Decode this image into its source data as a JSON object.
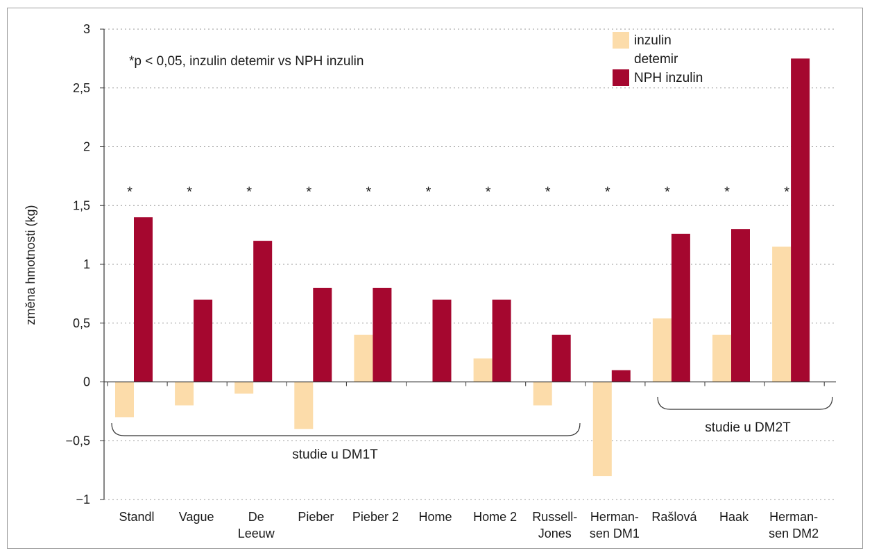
{
  "chart_data": {
    "type": "bar",
    "ylabel": "změna hmotnosti (kg)",
    "ylim": [
      -1,
      3
    ],
    "yticks": [
      -1,
      -0.5,
      0,
      0.5,
      1,
      1.5,
      2,
      2.5,
      3
    ],
    "ytick_labels": [
      "−1",
      "−0,5",
      "0",
      "0,5",
      "1",
      "1,5",
      "2",
      "2,5",
      "3"
    ],
    "grid": "horizontal dotted",
    "legend_position": "top-right",
    "categories": [
      [
        "Standl"
      ],
      [
        "Vague"
      ],
      [
        "De",
        "Leeuw"
      ],
      [
        "Pieber"
      ],
      [
        "Pieber 2"
      ],
      [
        "Home"
      ],
      [
        "Home 2"
      ],
      [
        "Russell-",
        "Jones"
      ],
      [
        "Herman-",
        "sen DM1"
      ],
      [
        "Rašlová"
      ],
      [
        "Haak"
      ],
      [
        "Herman-",
        "sen DM2"
      ]
    ],
    "series": [
      {
        "name": [
          "inzulin",
          "detemir"
        ],
        "color": "#fcdcaa",
        "values": [
          -0.3,
          -0.2,
          -0.1,
          -0.4,
          0.4,
          0.0,
          0.2,
          -0.2,
          -0.8,
          0.54,
          0.4,
          1.15
        ]
      },
      {
        "name": [
          "NPH inzulin"
        ],
        "color": "#a5072f",
        "values": [
          1.4,
          0.7,
          1.2,
          0.8,
          0.8,
          0.7,
          0.7,
          0.4,
          0.1,
          1.26,
          1.3,
          2.75
        ]
      }
    ],
    "significance_marker": "*",
    "significant": [
      true,
      true,
      true,
      true,
      true,
      true,
      true,
      true,
      true,
      true,
      true,
      true
    ],
    "annotation": "*p < 0,05, inzulin detemir vs NPH inzulin",
    "groups": [
      {
        "label": "studie u DM1T",
        "from": 0,
        "to": 7
      },
      {
        "label": "studie u DM2T",
        "from": 9,
        "to": 11
      }
    ]
  }
}
